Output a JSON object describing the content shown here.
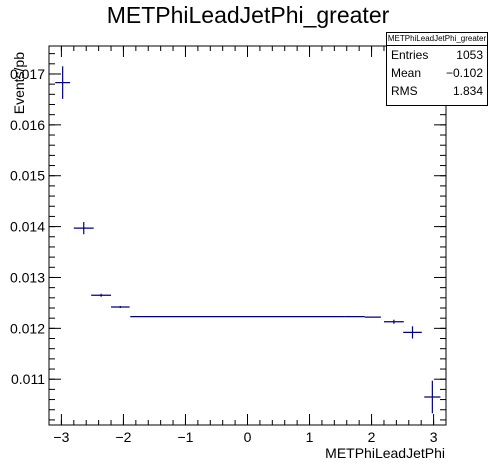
{
  "chart_data": {
    "type": "scatter",
    "title": "METPhiLeadJetPhi_greater",
    "xlabel": "METPhiLeadJetPhi",
    "ylabel": "Events/pb",
    "xlim": [
      -3.2,
      3.2
    ],
    "ylim": [
      0.0101,
      0.01755
    ],
    "x_ticks": [
      -3,
      -2,
      -1,
      0,
      1,
      2,
      3
    ],
    "y_ticks": [
      0.011,
      0.012,
      0.013,
      0.014,
      0.015,
      0.016,
      0.017
    ],
    "y_tick_labels": [
      "0.011",
      "0.012",
      "0.013",
      "0.014",
      "0.015",
      "0.016",
      "0.017"
    ],
    "grid": false,
    "marker_color": "#000080",
    "points": [
      {
        "x": -2.98,
        "y": 0.01683,
        "xerr": 0.12,
        "yerr": 0.00032
      },
      {
        "x": -2.64,
        "y": 0.01397,
        "xerr": 0.16,
        "yerr": 0.00012
      },
      {
        "x": -2.36,
        "y": 0.01265,
        "xerr": 0.16,
        "yerr": 3e-05
      },
      {
        "x": -2.05,
        "y": 0.01242,
        "xerr": 0.15,
        "yerr": 2e-05
      },
      {
        "x": -0.16,
        "y": 0.01223,
        "xerr": 1.73,
        "yerr": 5e-06
      },
      {
        "x": 1.73,
        "y": 0.01223,
        "xerr": 0.16,
        "yerr": 1e-05
      },
      {
        "x": 2.02,
        "y": 0.01222,
        "xerr": 0.13,
        "yerr": 1e-05
      },
      {
        "x": 2.36,
        "y": 0.01213,
        "xerr": 0.16,
        "yerr": 4e-05
      },
      {
        "x": 2.66,
        "y": 0.01192,
        "xerr": 0.15,
        "yerr": 0.00012
      },
      {
        "x": 2.98,
        "y": 0.01065,
        "xerr": 0.13,
        "yerr": 0.00032
      }
    ]
  },
  "stats": {
    "title": "METPhiLeadJetPhi_greater",
    "entries_label": "Entries",
    "entries_value": "1053",
    "mean_label": "Mean",
    "mean_value": "−0.102",
    "rms_label": "RMS",
    "rms_value": "1.834"
  }
}
